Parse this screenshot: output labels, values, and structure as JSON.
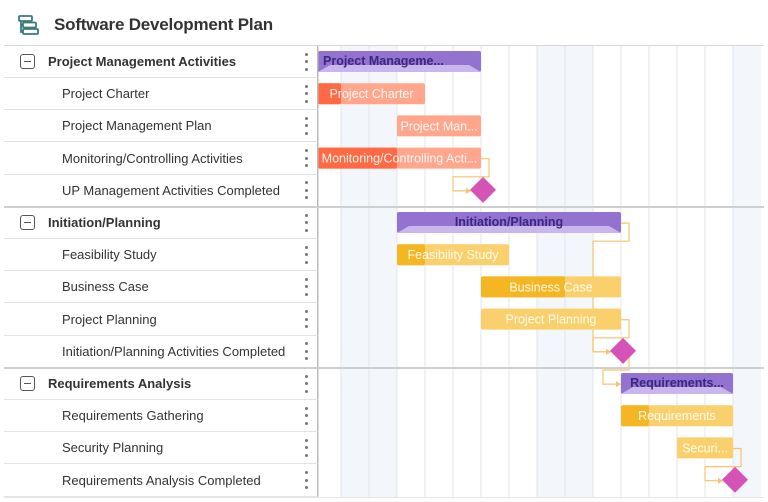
{
  "header": {
    "title": "Software Development Plan",
    "icon": "gantt-icon"
  },
  "timeline": {
    "shaded_columns": [
      1,
      2,
      8,
      9,
      15
    ],
    "column_count": 16
  },
  "colors": {
    "summary": "#9473d0",
    "summary_light": "#c8b6ec",
    "summary_text": "#3a2780",
    "red_dark": "#ff6a44",
    "red_light": "#ffa68c",
    "yellow_dark": "#f5b623",
    "yellow_light": "#f9d06b",
    "milestone": "#d553b6",
    "link": "#f7c46a",
    "weekend": "#f3f6fb",
    "grid": "#e2e5ea"
  },
  "rows": [
    {
      "type": "group",
      "label": "Project Management Activities",
      "bar_label": "Project Manageme...",
      "start": 0,
      "end": 6
    },
    {
      "type": "task",
      "label": "Project Charter",
      "bar_label": "Project Charter",
      "start": 0,
      "end": 4,
      "progress": 25,
      "color": "red"
    },
    {
      "type": "task",
      "label": "Project Management Plan",
      "bar_label": "Project Man...",
      "start": 3,
      "end": 6,
      "progress": 0,
      "color": "red"
    },
    {
      "type": "task",
      "label": "Monitoring/Controlling Activities",
      "bar_label": "Monitoring/Controlling Acti...",
      "start": 0,
      "end": 6,
      "progress": 50,
      "color": "red"
    },
    {
      "type": "milestone",
      "label": "UP Management Activities Completed",
      "at": 6
    },
    {
      "type": "group",
      "label": "Initiation/Planning",
      "bar_label": "Initiation/Planning",
      "start": 3,
      "end": 11
    },
    {
      "type": "task",
      "label": "Feasibility Study",
      "bar_label": "Feasibility Study",
      "start": 3,
      "end": 7,
      "progress": 25,
      "color": "yellow"
    },
    {
      "type": "task",
      "label": "Business Case",
      "bar_label": "Business Case",
      "start": 6,
      "end": 11,
      "progress": 60,
      "color": "yellow"
    },
    {
      "type": "task",
      "label": "Project Planning",
      "bar_label": "Project Planning",
      "start": 6,
      "end": 11,
      "progress": 0,
      "color": "yellow"
    },
    {
      "type": "milestone",
      "label": "Initiation/Planning Activities Completed",
      "at": 11
    },
    {
      "type": "group",
      "label": "Requirements Analysis",
      "bar_label": "Requirements...",
      "start": 11,
      "end": 15
    },
    {
      "type": "task",
      "label": "Requirements Gathering",
      "bar_label": "Requirements",
      "start": 11,
      "end": 15,
      "progress": 25,
      "color": "yellow"
    },
    {
      "type": "task",
      "label": "Security Planning",
      "bar_label": "Securi...",
      "start": 13,
      "end": 15,
      "progress": 0,
      "color": "yellow"
    },
    {
      "type": "milestone",
      "label": "Requirements Analysis Completed",
      "at": 15
    }
  ],
  "links": [
    [
      3,
      4
    ],
    [
      5,
      9
    ],
    [
      8,
      9
    ],
    [
      9,
      10
    ],
    [
      12,
      13
    ]
  ]
}
